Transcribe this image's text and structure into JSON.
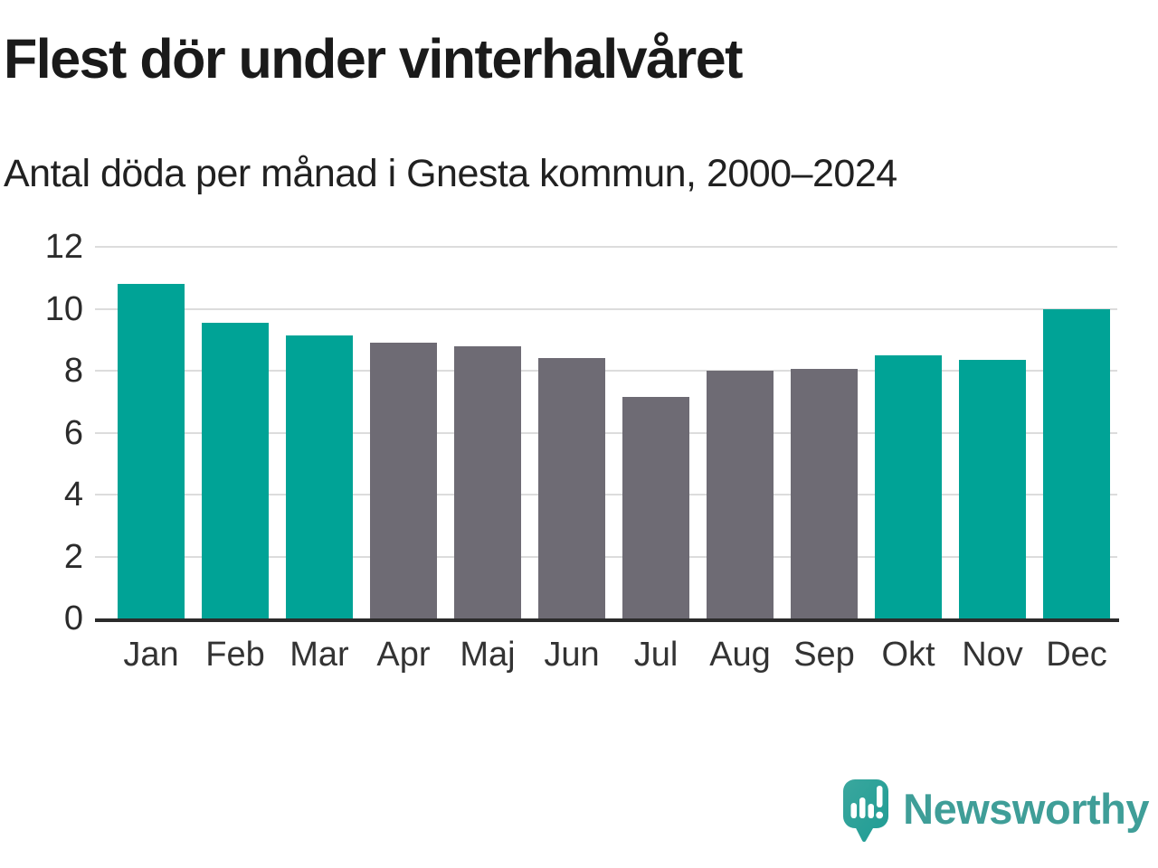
{
  "header": {
    "title": "Flest dör under vinterhalvåret",
    "subtitle": "Antal döda per månad i Gnesta kommun, 2000–2024"
  },
  "chart_data": {
    "type": "bar",
    "title": "Flest dör under vinterhalvåret",
    "subtitle": "Antal döda per månad i Gnesta kommun, 2000–2024",
    "categories": [
      "Jan",
      "Feb",
      "Mar",
      "Apr",
      "Maj",
      "Jun",
      "Jul",
      "Aug",
      "Sep",
      "Okt",
      "Nov",
      "Dec"
    ],
    "values": [
      10.8,
      9.55,
      9.15,
      8.9,
      8.8,
      8.4,
      7.15,
      8.0,
      8.05,
      8.5,
      8.35,
      10.0
    ],
    "highlighted": [
      true,
      true,
      true,
      false,
      false,
      false,
      false,
      false,
      false,
      true,
      true,
      true
    ],
    "series_note": "winter months (Okt–Mar) highlighted teal, summer months (Apr–Sep) gray",
    "xlabel": "",
    "ylabel": "",
    "ylim": [
      0,
      12
    ],
    "yticks": [
      0,
      2,
      4,
      6,
      8,
      10,
      12
    ],
    "grid": true,
    "legend": "none",
    "colors": {
      "highlight": "#00a396",
      "muted": "#6e6b74",
      "gridline": "#dcdcdc",
      "axis_line": "#2b2b2b",
      "tick_text": "#333333"
    }
  },
  "footer": {
    "logo_text": "Newsworthy",
    "logo_icon": "speech-bubble-bar-chart-exclamation",
    "logo_color": "#3f9e98"
  }
}
